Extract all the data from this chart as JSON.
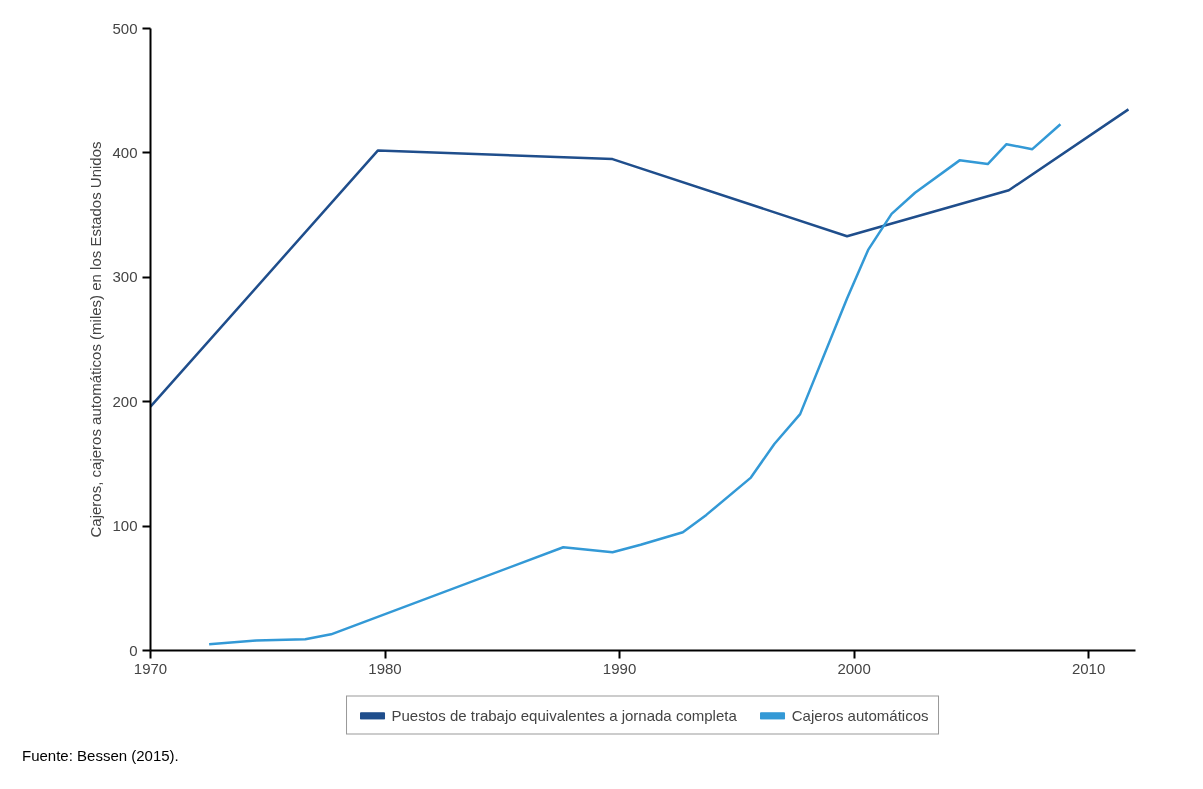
{
  "chart_data": {
    "type": "line",
    "ylabel": "Cajeros, cajeros automáticos (miles) en los Estados Unidos",
    "xlim": [
      1970,
      2012
    ],
    "xticks": [
      1970,
      1980,
      1990,
      2000,
      2010
    ],
    "ylim": [
      0,
      500
    ],
    "yticks": [
      0,
      100,
      200,
      300,
      400,
      500
    ],
    "grid": false,
    "legend": "bottom",
    "marker": "none",
    "line_style": "solid",
    "series": [
      {
        "name": "Puestos de trabajo equivalentes a jornada completa",
        "color": "#1f4e8c",
        "x": [
          1970,
          1979.7,
          1989.7,
          1999.7,
          2006.6,
          2011.7
        ],
        "values": [
          196,
          402,
          395,
          333,
          370,
          435
        ]
      },
      {
        "name": "Cajeros automáticos",
        "color": "#3399d6",
        "x": [
          1972.5,
          1974.5,
          1976.6,
          1977.7,
          1987.6,
          1989.7,
          1990.9,
          1992.7,
          1993.7,
          1995.6,
          1996.6,
          1997.7,
          1999.7,
          2000.6,
          2001.6,
          2002.6,
          2004.5,
          2005.7,
          2006.5,
          2007.6,
          2008.8
        ],
        "values": [
          5,
          8,
          9,
          13,
          83,
          79,
          85,
          95,
          109,
          139,
          166,
          190,
          283,
          322,
          351,
          368,
          394,
          391,
          407,
          403,
          423
        ]
      }
    ],
    "annotations": [
      "Fuente: Bessen (2015)."
    ]
  }
}
